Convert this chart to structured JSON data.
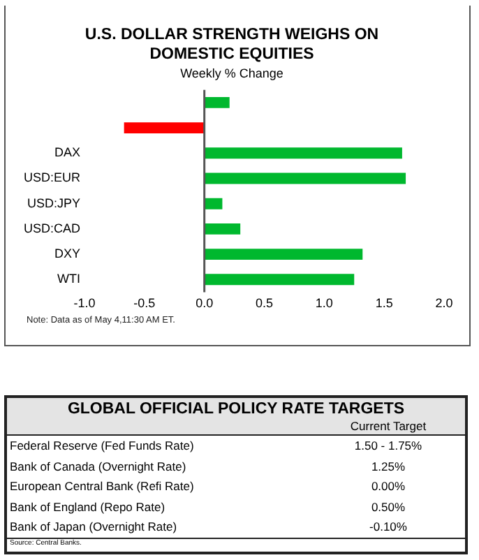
{
  "chart_data": [
    {
      "type": "bar",
      "orientation": "horizontal",
      "title": "U.S. DOLLAR STRENGTH WEIGHS ON DOMESTIC EQUITIES",
      "subtitle": "Weekly % Change",
      "categories": [
        null,
        null,
        "DAX",
        "USD:EUR",
        "USD:JPY",
        "USD:CAD",
        "DXY",
        "WTI"
      ],
      "values": [
        0.21,
        -0.67,
        1.65,
        1.68,
        0.15,
        0.3,
        1.32,
        1.25
      ],
      "colors": [
        "#00b82e",
        "#ff0000",
        "#00b82e",
        "#00b82e",
        "#00b82e",
        "#00b82e",
        "#00b82e",
        "#00b82e"
      ],
      "xlim": [
        -1.0,
        2.0
      ],
      "xticks": [
        {
          "value": -1.0,
          "label": "-1.0"
        },
        {
          "value": -0.5,
          "label": "-0.5"
        },
        {
          "value": 0,
          "label": "0.0"
        },
        {
          "value": 0.5,
          "label": "0.5"
        },
        {
          "value": 1.0,
          "label": "1.0"
        },
        {
          "value": 1.5,
          "label": "1.5"
        },
        {
          "value": 2.0,
          "label": "2.0"
        }
      ],
      "annotations": [
        "Note: Data as of May 4,11:30 AM ET."
      ]
    },
    {
      "type": "other",
      "title": "GLOBAL OFFICIAL POLICY RATE TARGETS",
      "xlabel": "Current Target",
      "categories": [
        "Federal Reserve (Fed Funds Rate)",
        "Bank of Canada (Overnight Rate)",
        "European Central Bank (Refi Rate)",
        "Bank of England (Repo Rate)",
        "Bank of Japan (Overnight Rate)"
      ],
      "value_labels": [
        "1.50 - 1.75%",
        "1.25%",
        "0.00%",
        "0.50%",
        "-0.10%"
      ],
      "annotations": [
        "Source: Central Banks."
      ]
    }
  ]
}
